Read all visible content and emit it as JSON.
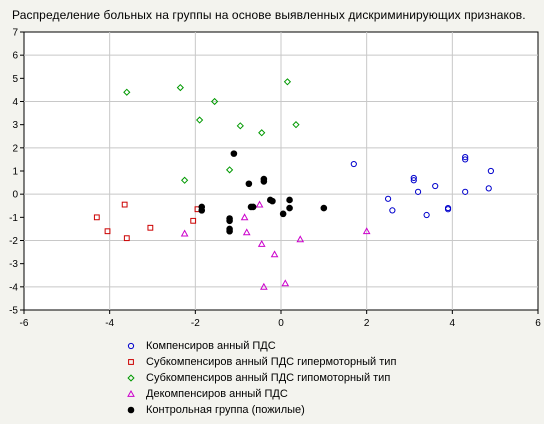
{
  "chart_data": {
    "type": "scatter",
    "title": "Распределение больных на группы на основе выявленных дискриминирующих признаков.",
    "xlabel": "",
    "ylabel": "",
    "xlim": [
      -6,
      6
    ],
    "ylim": [
      -5,
      7
    ],
    "x_ticks": [
      -6,
      -4,
      -2,
      0,
      2,
      4,
      6
    ],
    "y_ticks": [
      -5,
      -4,
      -3,
      -2,
      -1,
      0,
      1,
      2,
      3,
      4,
      5,
      6,
      7
    ],
    "grid": true,
    "legend_position": "bottom",
    "series": [
      {
        "name": "Компенсиров анный ПДС",
        "marker": "circle-open",
        "color": "#0000cc",
        "points": [
          [
            1.7,
            1.3
          ],
          [
            2.5,
            -0.2
          ],
          [
            2.6,
            -0.7
          ],
          [
            3.1,
            0.7
          ],
          [
            3.1,
            0.6
          ],
          [
            3.2,
            0.1
          ],
          [
            3.4,
            -0.9
          ],
          [
            3.6,
            0.35
          ],
          [
            3.9,
            -0.65
          ],
          [
            3.9,
            -0.6
          ],
          [
            4.3,
            1.6
          ],
          [
            4.3,
            1.5
          ],
          [
            4.3,
            0.1
          ],
          [
            4.85,
            0.25
          ],
          [
            4.9,
            1.0
          ]
        ]
      },
      {
        "name": "Субкомпенсиров анный ПДС гипермоторный тип",
        "marker": "square-open",
        "color": "#cc0000",
        "points": [
          [
            -4.3,
            -1.0
          ],
          [
            -4.05,
            -1.6
          ],
          [
            -3.65,
            -0.45
          ],
          [
            -3.6,
            -1.9
          ],
          [
            -3.05,
            -1.45
          ],
          [
            -2.05,
            -1.15
          ],
          [
            -1.95,
            -0.65
          ]
        ]
      },
      {
        "name": "Субкомпенсиров анный ПДС гипомоторный тип",
        "marker": "diamond-open",
        "color": "#009900",
        "points": [
          [
            -3.6,
            4.4
          ],
          [
            -2.35,
            4.6
          ],
          [
            -2.25,
            0.6
          ],
          [
            -1.9,
            3.2
          ],
          [
            -1.55,
            4.0
          ],
          [
            -1.2,
            1.05
          ],
          [
            -0.95,
            2.95
          ],
          [
            -0.45,
            2.65
          ],
          [
            0.15,
            4.85
          ],
          [
            0.35,
            3.0
          ]
        ]
      },
      {
        "name": "Декомпенсиров анный ПДС",
        "marker": "triangle-open",
        "color": "#cc00cc",
        "points": [
          [
            -2.25,
            -1.7
          ],
          [
            -0.85,
            -1.0
          ],
          [
            -0.8,
            -1.65
          ],
          [
            -0.5,
            -0.45
          ],
          [
            -0.45,
            -2.15
          ],
          [
            -0.4,
            -4.0
          ],
          [
            -0.15,
            -2.6
          ],
          [
            0.1,
            -3.85
          ],
          [
            0.45,
            -1.95
          ],
          [
            2.0,
            -1.6
          ]
        ]
      },
      {
        "name": "Контрольная группа (пожилые)",
        "marker": "circle-filled",
        "color": "#000000",
        "points": [
          [
            -1.85,
            -0.55
          ],
          [
            -1.85,
            -0.7
          ],
          [
            -1.2,
            -1.05
          ],
          [
            -1.2,
            -1.15
          ],
          [
            -1.2,
            -1.5
          ],
          [
            -1.2,
            -1.6
          ],
          [
            -1.1,
            1.75
          ],
          [
            -0.75,
            0.45
          ],
          [
            -0.7,
            -0.55
          ],
          [
            -0.65,
            -0.55
          ],
          [
            -0.4,
            0.65
          ],
          [
            -0.4,
            0.55
          ],
          [
            -0.25,
            -0.25
          ],
          [
            -0.2,
            -0.3
          ],
          [
            0.05,
            -0.85
          ],
          [
            0.2,
            -0.25
          ],
          [
            0.2,
            -0.6
          ],
          [
            1.0,
            -0.6
          ]
        ]
      }
    ]
  }
}
